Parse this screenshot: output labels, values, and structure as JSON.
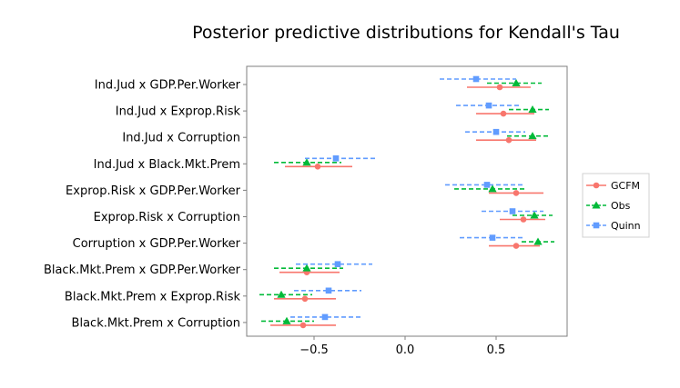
{
  "chart_data": {
    "type": "scatter",
    "subtype": "pointrange",
    "title": "Posterior predictive distributions for Kendall's Tau",
    "xlabel": "",
    "ylabel": "",
    "xlim": [
      -0.87,
      0.89
    ],
    "x_ticks": [
      -0.5,
      0.0,
      0.5
    ],
    "x_tick_labels": [
      "−0.5",
      "0.0",
      "0.5"
    ],
    "grid": false,
    "legend_position": "right",
    "categories": [
      "Ind.Jud x GDP.Per.Worker",
      "Ind.Jud x Exprop.Risk",
      "Ind.Jud x Corruption",
      "Ind.Jud x Black.Mkt.Prem",
      "Exprop.Risk x GDP.Per.Worker",
      "Exprop.Risk x Corruption",
      "Corruption x GDP.Per.Worker",
      "Black.Mkt.Prem x GDP.Per.Worker",
      "Black.Mkt.Prem x Exprop.Risk",
      "Black.Mkt.Prem x Corruption"
    ],
    "series": [
      {
        "name": "GCFM",
        "color": "#F8766D",
        "line": "solid",
        "marker": "circle",
        "points": [
          {
            "est": 0.52,
            "low": 0.34,
            "high": 0.69
          },
          {
            "est": 0.54,
            "low": 0.39,
            "high": 0.71
          },
          {
            "est": 0.57,
            "low": 0.39,
            "high": 0.72
          },
          {
            "est": -0.48,
            "low": -0.66,
            "high": -0.29
          },
          {
            "est": 0.61,
            "low": 0.46,
            "high": 0.76
          },
          {
            "est": 0.65,
            "low": 0.52,
            "high": 0.77
          },
          {
            "est": 0.61,
            "low": 0.46,
            "high": 0.74
          },
          {
            "est": -0.54,
            "low": -0.69,
            "high": -0.36
          },
          {
            "est": -0.55,
            "low": -0.72,
            "high": -0.38
          },
          {
            "est": -0.56,
            "low": -0.74,
            "high": -0.38
          }
        ]
      },
      {
        "name": "Obs",
        "color": "#00BA38",
        "line": "dashed",
        "marker": "triangle",
        "points": [
          {
            "est": 0.61,
            "low": 0.45,
            "high": 0.75
          },
          {
            "est": 0.7,
            "low": 0.57,
            "high": 0.79
          },
          {
            "est": 0.7,
            "low": 0.56,
            "high": 0.8
          },
          {
            "est": -0.54,
            "low": -0.72,
            "high": -0.35
          },
          {
            "est": 0.48,
            "low": 0.27,
            "high": 0.67
          },
          {
            "est": 0.71,
            "low": 0.59,
            "high": 0.81
          },
          {
            "est": 0.73,
            "low": 0.64,
            "high": 0.82
          },
          {
            "est": -0.54,
            "low": -0.72,
            "high": -0.34
          },
          {
            "est": -0.68,
            "low": -0.8,
            "high": -0.51
          },
          {
            "est": -0.65,
            "low": -0.79,
            "high": -0.5
          }
        ]
      },
      {
        "name": "Quinn",
        "color": "#619CFF",
        "line": "dashed",
        "marker": "square",
        "points": [
          {
            "est": 0.39,
            "low": 0.19,
            "high": 0.61
          },
          {
            "est": 0.46,
            "low": 0.28,
            "high": 0.64
          },
          {
            "est": 0.5,
            "low": 0.33,
            "high": 0.66
          },
          {
            "est": -0.38,
            "low": -0.55,
            "high": -0.16
          },
          {
            "est": 0.45,
            "low": 0.22,
            "high": 0.65
          },
          {
            "est": 0.59,
            "low": 0.42,
            "high": 0.76
          },
          {
            "est": 0.48,
            "low": 0.3,
            "high": 0.66
          },
          {
            "est": -0.37,
            "low": -0.6,
            "high": -0.18
          },
          {
            "est": -0.42,
            "low": -0.61,
            "high": -0.24
          },
          {
            "est": -0.44,
            "low": -0.63,
            "high": -0.24
          }
        ]
      }
    ]
  }
}
